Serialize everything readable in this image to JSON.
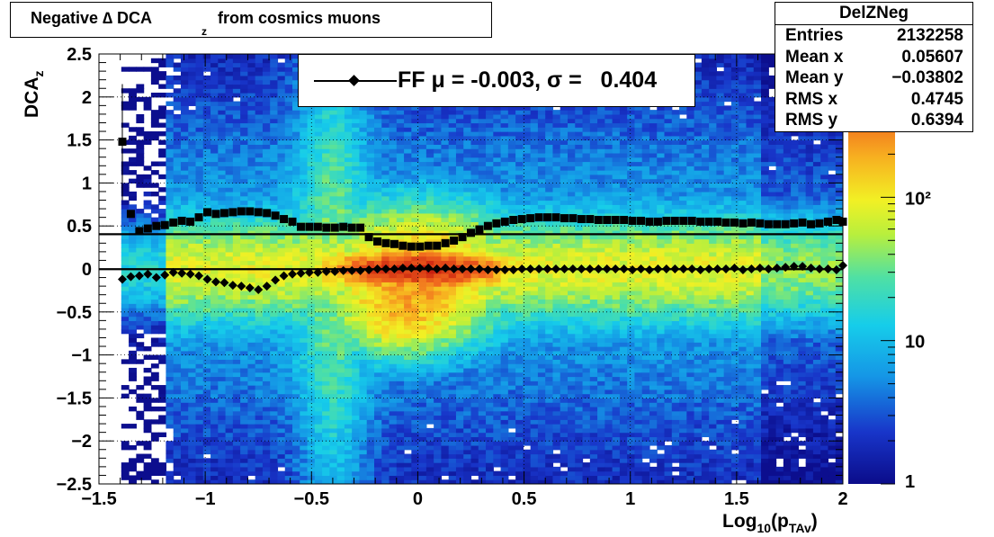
{
  "title": {
    "prefix": "Negative ∆ DCA",
    "sub": "z",
    "suffix": " from cosmics muons"
  },
  "stats": {
    "name": "DelZNeg",
    "rows": [
      {
        "label": "Entries",
        "value": "2132258"
      },
      {
        "label": "Mean x",
        "value": "0.05607"
      },
      {
        "label": "Mean y",
        "value": "−0.03802"
      },
      {
        "label": "RMS x",
        "value": "0.4745"
      },
      {
        "label": "RMS y",
        "value": "0.6394"
      }
    ]
  },
  "legend": {
    "text": "FF μ = -0.003, σ =   0.404"
  },
  "chart_data": {
    "type": "heatmap",
    "xlabel_main": "Log",
    "xlabel_sub": "10",
    "xlabel_rest_open": "(p",
    "xlabel_rest_sub": "TAv",
    "xlabel_rest_close": ")",
    "ylabel_main": "DCA",
    "ylabel_sub": "z",
    "xlim": [
      -1.5,
      2
    ],
    "ylim": [
      -2.5,
      2.5
    ],
    "x_ticks": [
      "−1.5",
      "−1",
      "−0.5",
      "0",
      "0.5",
      "1",
      "1.5",
      "2"
    ],
    "x_tick_values": [
      -1.5,
      -1,
      -0.5,
      0,
      0.5,
      1,
      1.5,
      2
    ],
    "y_ticks": [
      "−2.5",
      "−2",
      "−1.5",
      "−1",
      "−0.5",
      "0",
      "0.5",
      "1",
      "1.5",
      "2",
      "2.5"
    ],
    "y_tick_values": [
      -2.5,
      -2,
      -1.5,
      -1,
      -0.5,
      0,
      0.5,
      1,
      1.5,
      2,
      2.5
    ],
    "z_scale": "log",
    "z_ticks": [
      "1",
      "10",
      "10²"
    ],
    "z_tick_values": [
      1,
      10,
      100
    ],
    "z_max": 1000,
    "grid": true,
    "horizontal_lines": [
      0.404,
      -0.003
    ],
    "mean_series": {
      "marker": "diamond",
      "points": [
        [
          -1.39,
          -0.12
        ],
        [
          -1.35,
          -0.09
        ],
        [
          -1.31,
          -0.08
        ],
        [
          -1.27,
          -0.06
        ],
        [
          -1.23,
          -0.1
        ],
        [
          -1.19,
          -0.07
        ],
        [
          -1.15,
          -0.04
        ],
        [
          -1.11,
          -0.05
        ],
        [
          -1.07,
          -0.06
        ],
        [
          -1.03,
          -0.08
        ],
        [
          -0.99,
          -0.12
        ],
        [
          -0.95,
          -0.15
        ],
        [
          -0.91,
          -0.16
        ],
        [
          -0.87,
          -0.19
        ],
        [
          -0.83,
          -0.2
        ],
        [
          -0.79,
          -0.22
        ],
        [
          -0.75,
          -0.24
        ],
        [
          -0.71,
          -0.2
        ],
        [
          -0.67,
          -0.13
        ],
        [
          -0.63,
          -0.08
        ],
        [
          -0.59,
          -0.06
        ],
        [
          -0.55,
          -0.05
        ],
        [
          -0.51,
          -0.04
        ],
        [
          -0.47,
          -0.04
        ],
        [
          -0.43,
          -0.03
        ],
        [
          -0.39,
          -0.03
        ],
        [
          -0.35,
          -0.02
        ],
        [
          -0.31,
          -0.02
        ],
        [
          -0.27,
          -0.02
        ],
        [
          -0.23,
          -0.01
        ],
        [
          -0.19,
          0.0
        ],
        [
          -0.15,
          0.0
        ],
        [
          -0.11,
          0.0
        ],
        [
          -0.07,
          0.01
        ],
        [
          -0.03,
          0.01
        ],
        [
          0.01,
          0.01
        ],
        [
          0.05,
          0.01
        ],
        [
          0.09,
          0.0
        ],
        [
          0.13,
          0.01
        ],
        [
          0.17,
          0.0
        ],
        [
          0.21,
          0.0
        ],
        [
          0.25,
          0.0
        ],
        [
          0.29,
          0.0
        ],
        [
          0.33,
          -0.01
        ],
        [
          0.37,
          -0.01
        ],
        [
          0.41,
          -0.01
        ],
        [
          0.45,
          -0.01
        ],
        [
          0.49,
          0.0
        ],
        [
          0.53,
          0.0
        ],
        [
          0.57,
          0.0
        ],
        [
          0.61,
          0.0
        ],
        [
          0.65,
          0.0
        ],
        [
          0.69,
          0.0
        ],
        [
          0.73,
          0.0
        ],
        [
          0.77,
          0.0
        ],
        [
          0.81,
          0.0
        ],
        [
          0.85,
          0.0
        ],
        [
          0.89,
          0.0
        ],
        [
          0.93,
          0.0
        ],
        [
          0.97,
          0.0
        ],
        [
          1.01,
          -0.01
        ],
        [
          1.05,
          0.0
        ],
        [
          1.09,
          -0.01
        ],
        [
          1.13,
          0.0
        ],
        [
          1.17,
          0.0
        ],
        [
          1.21,
          0.0
        ],
        [
          1.25,
          0.0
        ],
        [
          1.29,
          0.0
        ],
        [
          1.33,
          -0.01
        ],
        [
          1.37,
          0.0
        ],
        [
          1.41,
          0.0
        ],
        [
          1.45,
          0.0
        ],
        [
          1.49,
          0.01
        ],
        [
          1.53,
          -0.01
        ],
        [
          1.57,
          0.0
        ],
        [
          1.61,
          0.01
        ],
        [
          1.65,
          0.0
        ],
        [
          1.69,
          0.01
        ],
        [
          1.73,
          0.02
        ],
        [
          1.77,
          0.03
        ],
        [
          1.81,
          0.03
        ],
        [
          1.85,
          0.01
        ],
        [
          1.89,
          0.0
        ],
        [
          1.93,
          0.0
        ],
        [
          1.97,
          -0.01
        ],
        [
          2.0,
          0.04
        ]
      ]
    },
    "sigma_series": {
      "marker": "square",
      "points": [
        [
          -1.39,
          1.48
        ],
        [
          -1.35,
          0.64
        ],
        [
          -1.31,
          0.44
        ],
        [
          -1.27,
          0.47
        ],
        [
          -1.23,
          0.5
        ],
        [
          -1.19,
          0.51
        ],
        [
          -1.15,
          0.54
        ],
        [
          -1.11,
          0.56
        ],
        [
          -1.07,
          0.55
        ],
        [
          -1.03,
          0.6
        ],
        [
          -0.99,
          0.66
        ],
        [
          -0.95,
          0.64
        ],
        [
          -0.91,
          0.65
        ],
        [
          -0.87,
          0.66
        ],
        [
          -0.83,
          0.67
        ],
        [
          -0.79,
          0.67
        ],
        [
          -0.75,
          0.66
        ],
        [
          -0.71,
          0.65
        ],
        [
          -0.67,
          0.62
        ],
        [
          -0.63,
          0.58
        ],
        [
          -0.59,
          0.55
        ],
        [
          -0.55,
          0.49
        ],
        [
          -0.51,
          0.49
        ],
        [
          -0.47,
          0.49
        ],
        [
          -0.43,
          0.48
        ],
        [
          -0.39,
          0.48
        ],
        [
          -0.35,
          0.49
        ],
        [
          -0.31,
          0.48
        ],
        [
          -0.27,
          0.48
        ],
        [
          -0.23,
          0.37
        ],
        [
          -0.19,
          0.32
        ],
        [
          -0.15,
          0.3
        ],
        [
          -0.11,
          0.29
        ],
        [
          -0.07,
          0.27
        ],
        [
          -0.03,
          0.26
        ],
        [
          0.01,
          0.26
        ],
        [
          0.05,
          0.27
        ],
        [
          0.09,
          0.27
        ],
        [
          0.13,
          0.3
        ],
        [
          0.17,
          0.33
        ],
        [
          0.21,
          0.37
        ],
        [
          0.25,
          0.42
        ],
        [
          0.29,
          0.46
        ],
        [
          0.33,
          0.5
        ],
        [
          0.37,
          0.53
        ],
        [
          0.41,
          0.55
        ],
        [
          0.45,
          0.57
        ],
        [
          0.49,
          0.58
        ],
        [
          0.53,
          0.59
        ],
        [
          0.57,
          0.6
        ],
        [
          0.61,
          0.6
        ],
        [
          0.65,
          0.6
        ],
        [
          0.69,
          0.59
        ],
        [
          0.73,
          0.59
        ],
        [
          0.77,
          0.58
        ],
        [
          0.81,
          0.58
        ],
        [
          0.85,
          0.57
        ],
        [
          0.89,
          0.57
        ],
        [
          0.93,
          0.57
        ],
        [
          0.97,
          0.57
        ],
        [
          1.01,
          0.56
        ],
        [
          1.05,
          0.56
        ],
        [
          1.09,
          0.55
        ],
        [
          1.13,
          0.55
        ],
        [
          1.17,
          0.56
        ],
        [
          1.21,
          0.56
        ],
        [
          1.25,
          0.56
        ],
        [
          1.29,
          0.56
        ],
        [
          1.33,
          0.55
        ],
        [
          1.37,
          0.55
        ],
        [
          1.41,
          0.55
        ],
        [
          1.45,
          0.54
        ],
        [
          1.49,
          0.54
        ],
        [
          1.53,
          0.53
        ],
        [
          1.57,
          0.54
        ],
        [
          1.61,
          0.53
        ],
        [
          1.65,
          0.52
        ],
        [
          1.69,
          0.52
        ],
        [
          1.73,
          0.52
        ],
        [
          1.77,
          0.53
        ],
        [
          1.81,
          0.54
        ],
        [
          1.85,
          0.52
        ],
        [
          1.89,
          0.53
        ],
        [
          1.93,
          0.55
        ],
        [
          1.97,
          0.57
        ],
        [
          2.0,
          0.55
        ]
      ]
    }
  }
}
